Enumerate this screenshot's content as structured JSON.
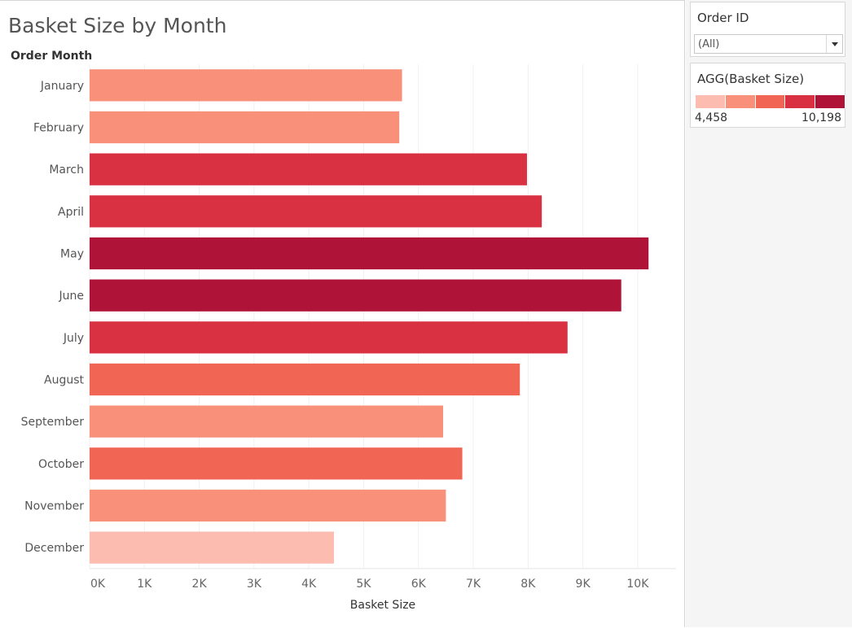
{
  "title": "Basket Size by Month",
  "row_header": "Order Month",
  "filter": {
    "title": "Order ID",
    "selected": "(All)"
  },
  "legend": {
    "title": "AGG(Basket Size)",
    "min_label": "4,458",
    "max_label": "10,198",
    "colors": [
      "#fdbcb0",
      "#f9907a",
      "#f06554",
      "#d93042",
      "#b01338"
    ]
  },
  "chart_data": {
    "type": "bar",
    "orientation": "horizontal",
    "categories": [
      "January",
      "February",
      "March",
      "April",
      "May",
      "June",
      "July",
      "August",
      "September",
      "October",
      "November",
      "December"
    ],
    "values": [
      5700,
      5650,
      7980,
      8250,
      10198,
      9700,
      8720,
      7850,
      6450,
      6800,
      6500,
      4458
    ],
    "colors": [
      "#f9907a",
      "#f9907a",
      "#d93042",
      "#d93042",
      "#b01338",
      "#b01338",
      "#d93042",
      "#f06554",
      "#f9907a",
      "#f06554",
      "#f9907a",
      "#fdbcb0"
    ],
    "xlabel": "Basket Size",
    "ylabel": "Order Month",
    "xlim": [
      0,
      10700
    ],
    "ticks": [
      0,
      1000,
      2000,
      3000,
      4000,
      5000,
      6000,
      7000,
      8000,
      9000,
      10000
    ],
    "tick_labels": [
      "0K",
      "1K",
      "2K",
      "3K",
      "4K",
      "5K",
      "6K",
      "7K",
      "8K",
      "9K",
      "10K"
    ],
    "grid": true,
    "legend": "right"
  }
}
